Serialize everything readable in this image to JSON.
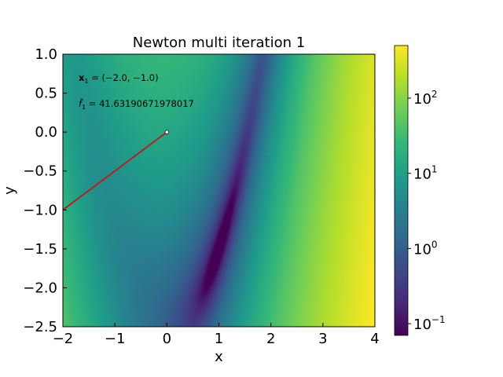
{
  "chart_data": {
    "type": "heatmap",
    "title": "Newton multi iteration 1",
    "xlabel": "x",
    "ylabel": "y",
    "xlim": [
      -2,
      4
    ],
    "ylim": [
      -2.5,
      1.0
    ],
    "xticks": [
      -2,
      -1,
      0,
      1,
      2,
      3,
      4
    ],
    "xtick_labels": [
      "−2",
      "−1",
      "0",
      "1",
      "2",
      "3",
      "4"
    ],
    "yticks": [
      1.0,
      0.5,
      0.0,
      -0.5,
      -1.0,
      -1.5,
      -2.0,
      -2.5
    ],
    "ytick_labels": [
      "1.0",
      "0.5",
      "0.0",
      "−0.5",
      "−1.0",
      "−1.5",
      "−2.0",
      "−2.5"
    ],
    "colorbar": {
      "scale": "log",
      "range": [
        0.07,
        500
      ],
      "ticks": [
        0.1,
        1,
        10,
        100
      ],
      "tick_bases": [
        "10",
        "10",
        "10",
        "10"
      ],
      "tick_exponents": [
        "−1",
        "0",
        "1",
        "2"
      ],
      "colormap": "viridis"
    },
    "path": {
      "points": [
        {
          "x": -2.0,
          "y": -1.0
        },
        {
          "x": 0.0,
          "y": 0.0
        }
      ],
      "line_color": "#b22222",
      "marker_color": "#ffffff"
    },
    "annotations": {
      "x_label_bold": "x",
      "x_subscript": "1",
      "x_value": " = (−2.0, −1.0)",
      "f_symbol": "f̃",
      "f_subscript": "1",
      "f_value": " = 41.63190671978017"
    },
    "colors": {
      "viridis": [
        "#440154",
        "#482878",
        "#3e4989",
        "#31688e",
        "#26828e",
        "#1f9e89",
        "#35b779",
        "#6ece58",
        "#b5de2b",
        "#fde725"
      ]
    }
  }
}
